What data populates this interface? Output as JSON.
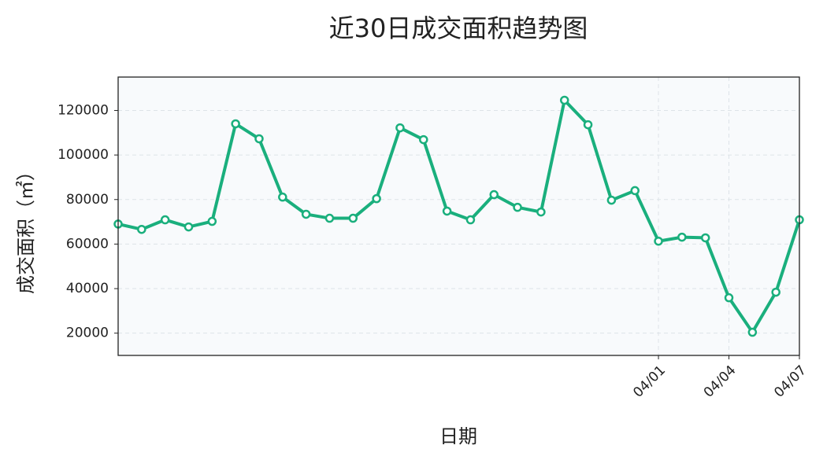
{
  "chart_data": {
    "type": "line",
    "title": "近30日成交面积趋势图",
    "x_label": "日期",
    "y_label": "成交面积（㎡）",
    "categories": [
      null,
      null,
      null,
      null,
      null,
      null,
      null,
      null,
      null,
      null,
      null,
      null,
      null,
      null,
      null,
      null,
      null,
      null,
      null,
      null,
      null,
      null,
      null,
      "04/01",
      null,
      null,
      "04/04",
      null,
      null,
      "04/07"
    ],
    "series": [
      {
        "name": "成交面积",
        "color": "#1aaf7d",
        "values": [
          69000,
          66600,
          70900,
          67700,
          70200,
          114000,
          107300,
          81100,
          73400,
          71600,
          71600,
          80400,
          112200,
          106900,
          74800,
          70900,
          82200,
          76500,
          74400,
          124600,
          113600,
          79700,
          84000,
          61300,
          63100,
          62800,
          35900,
          20400,
          38400,
          70900
        ]
      }
    ],
    "ylim": [
      10000,
      135000
    ],
    "yticks": [
      20000,
      40000,
      60000,
      80000,
      100000,
      120000
    ],
    "grid": true
  }
}
